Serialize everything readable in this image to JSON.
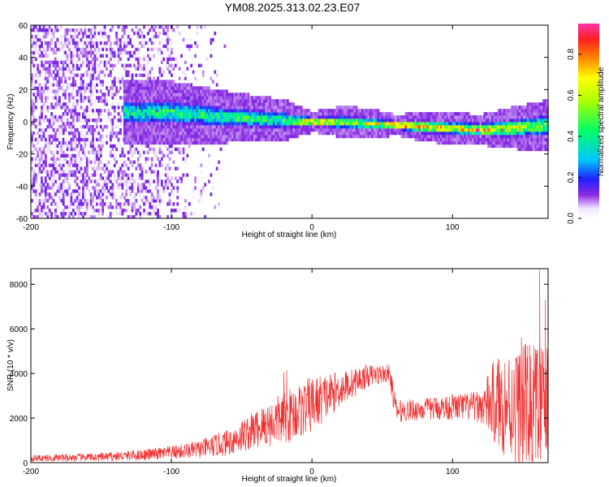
{
  "title": "YM08.2025.313.02.23.E07",
  "chart_data": [
    {
      "type": "heatmap",
      "xlabel": "Height of straight line (km)",
      "ylabel": "Frequency (Hz)",
      "xlim": [
        -200,
        168
      ],
      "ylim": [
        -60,
        60
      ],
      "xticks": [
        -200,
        -100,
        0,
        100
      ],
      "yticks": [
        -60,
        -40,
        -20,
        0,
        20,
        40,
        60
      ],
      "colorbar": {
        "label": "Normalized spectral amplitude",
        "range": [
          0.0,
          0.95
        ],
        "ticks": [
          0.0,
          0.2,
          0.4,
          0.6,
          0.8
        ],
        "tick_labels": [
          "0.0",
          "0.2",
          "0.4",
          "0.6",
          "0.8"
        ]
      },
      "ridge": {
        "description_points_x": [
          -130,
          -100,
          -60,
          -20,
          0,
          20,
          40,
          60,
          80,
          100,
          120,
          140,
          168
        ],
        "center_freq_hz": [
          6,
          6,
          3,
          1,
          0,
          0,
          -1,
          -2,
          -3,
          -4,
          -5,
          -4,
          -2
        ],
        "peak_amplitude": [
          0.45,
          0.5,
          0.5,
          0.55,
          0.9,
          0.7,
          0.7,
          0.9,
          0.9,
          0.8,
          0.9,
          0.8,
          0.6
        ],
        "half_width_hz": [
          6,
          6,
          5,
          4,
          2,
          3,
          3,
          2,
          3,
          3,
          3,
          4,
          5
        ]
      },
      "noise_region_x": [
        -200,
        -60
      ]
    },
    {
      "type": "line",
      "xlabel": "Height of straight line (km)",
      "ylabel": "SNR (10 * v/v)",
      "xlim": [
        -200,
        168
      ],
      "ylim": [
        0,
        8700
      ],
      "xticks": [
        -200,
        -100,
        0,
        100
      ],
      "yticks": [
        0,
        2000,
        4000,
        6000,
        8000
      ],
      "color": "#ee3333",
      "envelope": {
        "x": [
          -200,
          -150,
          -120,
          -100,
          -80,
          -60,
          -40,
          -20,
          0,
          20,
          40,
          55,
          58,
          60,
          80,
          100,
          120,
          130,
          140,
          150,
          160,
          168
        ],
        "mean": [
          200,
          250,
          350,
          450,
          600,
          900,
          1500,
          2000,
          2600,
          3300,
          3900,
          4000,
          3000,
          2300,
          2400,
          2500,
          2500,
          2700,
          2600,
          2500,
          2400,
          2400
        ],
        "spread": [
          150,
          180,
          250,
          300,
          400,
          600,
          900,
          1200,
          1300,
          800,
          500,
          400,
          600,
          500,
          500,
          600,
          700,
          2000,
          2500,
          2800,
          3200,
          3000
        ]
      },
      "spikes": [
        {
          "x": -18,
          "y": 4150
        },
        {
          "x": -20,
          "y": 4050
        },
        {
          "x": 149,
          "y": 5600
        },
        {
          "x": 162,
          "y": 8650
        },
        {
          "x": 166,
          "y": 7300
        }
      ]
    }
  ]
}
